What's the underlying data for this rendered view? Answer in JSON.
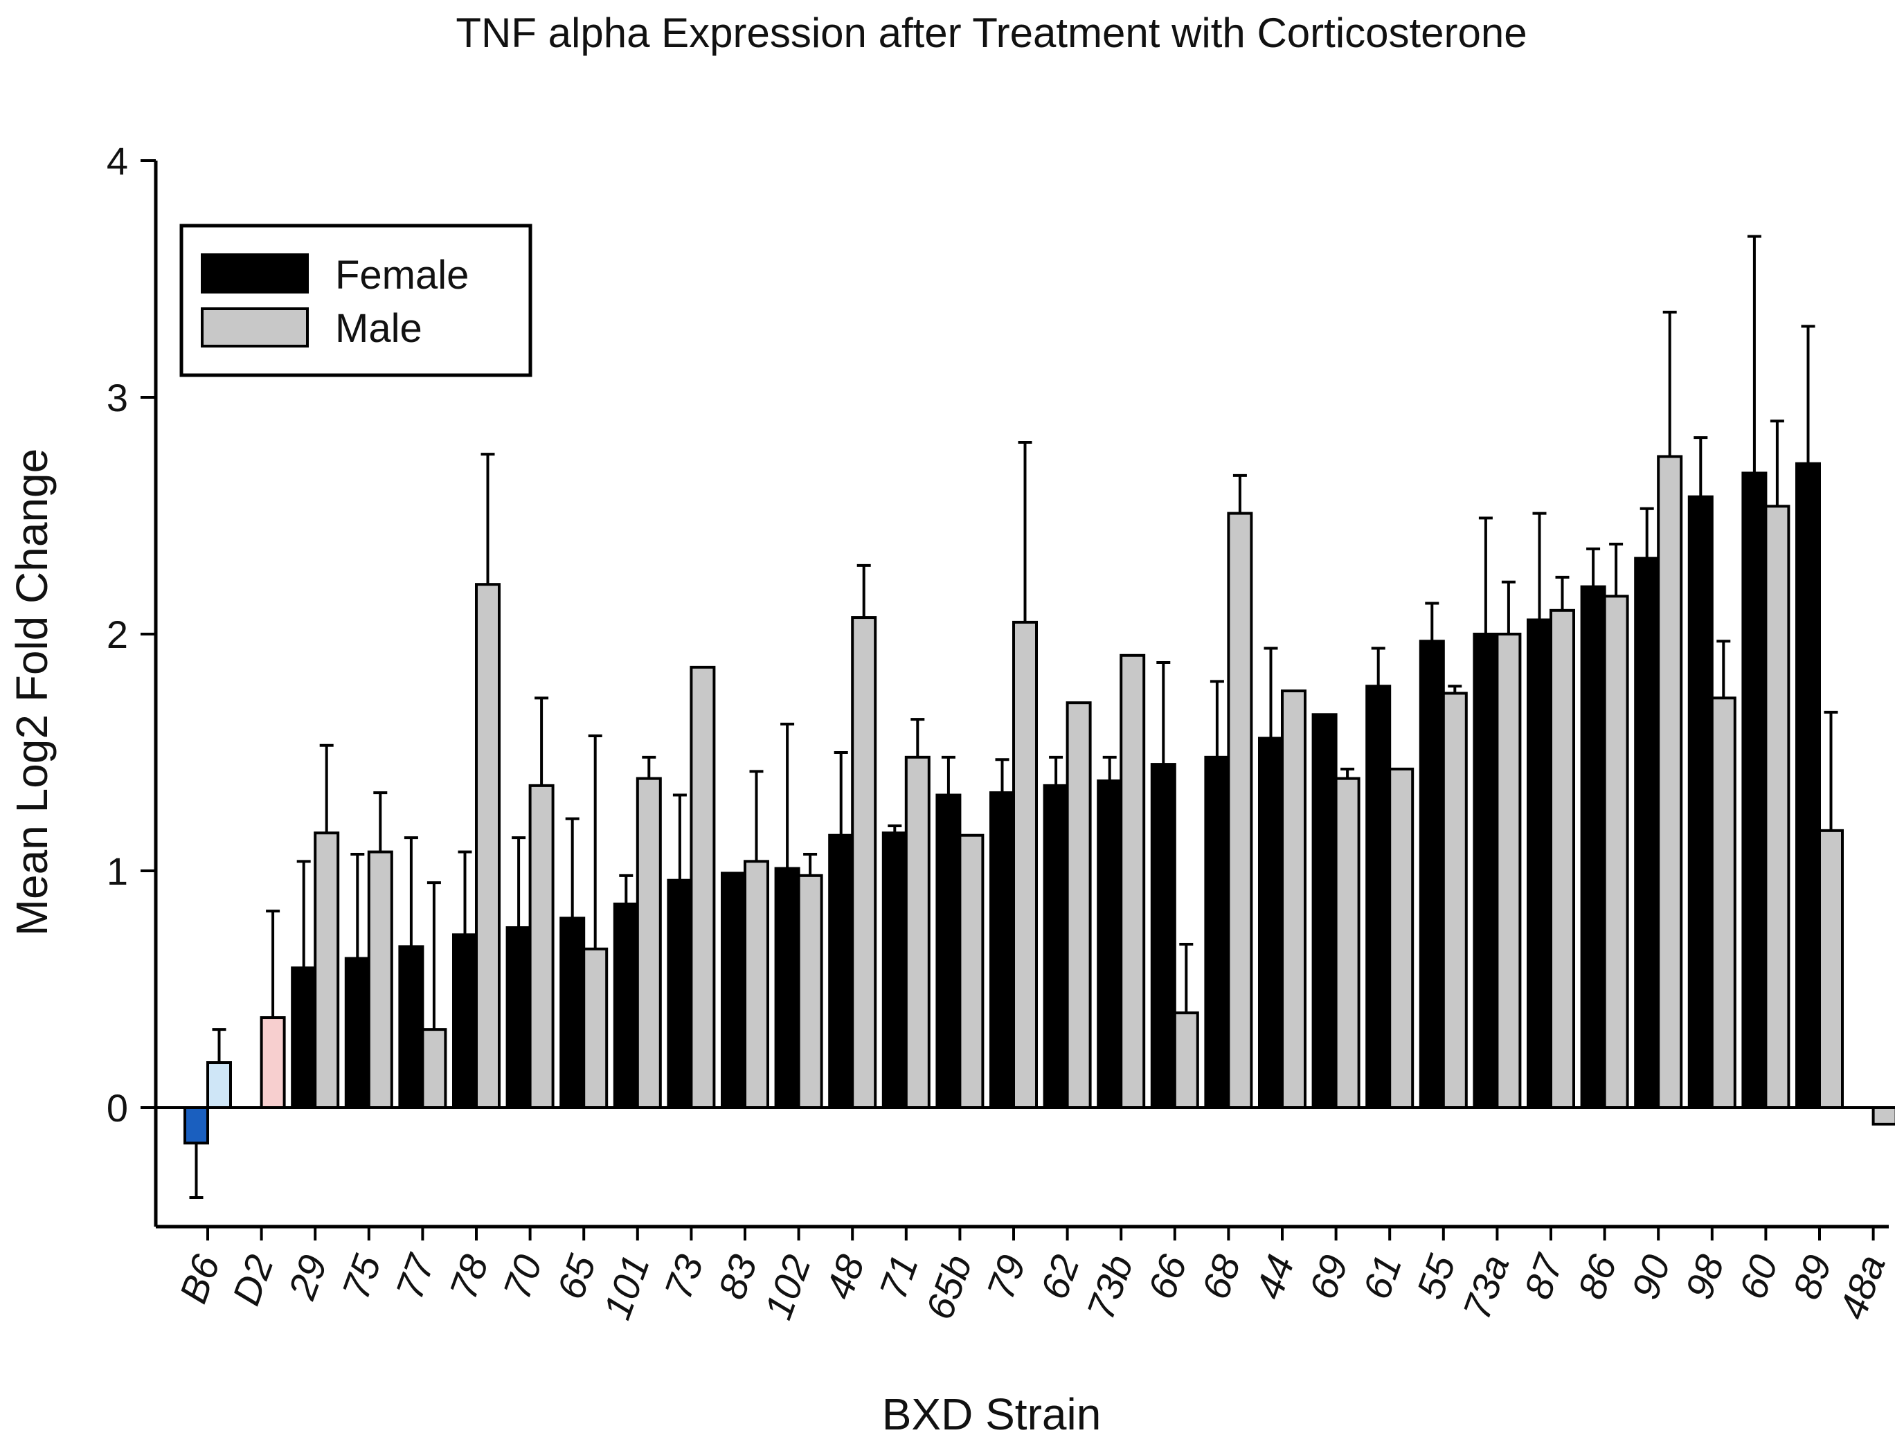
{
  "chart_data": {
    "type": "bar",
    "title": "TNF alpha Expression after Treatment with Corticosterone",
    "xlabel": "BXD Strain",
    "ylabel": "Mean Log2 Fold Change",
    "ylim": [
      -0.5,
      4
    ],
    "yticks": [
      0,
      1,
      2,
      3,
      4
    ],
    "legend_position": "top-left",
    "categories": [
      "B6",
      "D2",
      "29",
      "75",
      "77",
      "78",
      "70",
      "65",
      "101",
      "73",
      "83",
      "102",
      "48",
      "71",
      "65b",
      "79",
      "62",
      "73b",
      "66",
      "68",
      "44",
      "69",
      "61",
      "55",
      "73a",
      "87",
      "86",
      "90",
      "98",
      "60",
      "89",
      "48a"
    ],
    "series": [
      {
        "name": "Female",
        "color": "#000000",
        "values": [
          -0.15,
          null,
          0.59,
          0.63,
          0.68,
          0.73,
          0.76,
          0.8,
          0.86,
          0.96,
          0.99,
          1.01,
          1.15,
          1.16,
          1.32,
          1.33,
          1.36,
          1.38,
          1.45,
          1.48,
          1.56,
          1.66,
          1.78,
          1.97,
          2.0,
          2.06,
          2.2,
          2.32,
          2.58,
          2.68,
          2.72,
          null
        ],
        "errors": [
          0.23,
          null,
          0.45,
          0.44,
          0.46,
          0.35,
          0.38,
          0.42,
          0.12,
          0.36,
          0.0,
          0.61,
          0.35,
          0.03,
          0.16,
          0.14,
          0.12,
          0.1,
          0.43,
          0.32,
          0.38,
          0.0,
          0.16,
          0.16,
          0.49,
          0.45,
          0.16,
          0.21,
          0.25,
          1.0,
          0.58,
          null
        ]
      },
      {
        "name": "Male",
        "color": "#c8c8c8",
        "values": [
          0.19,
          0.38,
          1.16,
          1.08,
          0.33,
          2.21,
          1.36,
          0.67,
          1.39,
          1.86,
          1.04,
          0.98,
          2.07,
          1.48,
          1.15,
          2.05,
          1.71,
          1.91,
          0.4,
          2.51,
          1.76,
          1.39,
          1.43,
          1.75,
          2.0,
          2.1,
          2.16,
          2.75,
          1.73,
          2.54,
          1.17,
          -0.07
        ],
        "errors": [
          0.14,
          0.45,
          0.37,
          0.25,
          0.62,
          0.55,
          0.37,
          0.9,
          0.09,
          0.0,
          0.38,
          0.09,
          0.22,
          0.16,
          0.0,
          0.76,
          0.0,
          0.0,
          0.29,
          0.16,
          0.0,
          0.04,
          0.0,
          0.03,
          0.22,
          0.14,
          0.22,
          0.61,
          0.24,
          0.36,
          0.5,
          0.0
        ]
      }
    ],
    "special_colors": {
      "B6_female": "#1a5fbf",
      "B6_male": "#cfe6f7",
      "D2_female": "#ffffff",
      "D2_male": "#f7cfcf"
    }
  }
}
